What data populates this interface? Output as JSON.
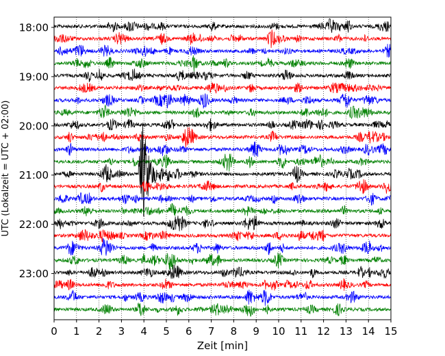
{
  "chart_data": {
    "type": "line",
    "subtype": "seismogram-dayplot",
    "xlabel": "Zeit  [min]",
    "ylabel": "UTC (Lokalzeit = UTC + 02:00)",
    "xlim": [
      0,
      15
    ],
    "x_ticks": [
      "0",
      "1",
      "2",
      "3",
      "4",
      "5",
      "6",
      "7",
      "8",
      "9",
      "10",
      "11",
      "12",
      "13",
      "14",
      "15"
    ],
    "y_ticks": [
      "18:00",
      "19:00",
      "20:00",
      "21:00",
      "22:00",
      "23:00"
    ],
    "trace_interval_minutes": 15,
    "trace_count": 24,
    "trace_colors": [
      "#000000",
      "#ff0000",
      "#0000ff",
      "#008000"
    ],
    "grid": "vertical-dotted",
    "events": [
      {
        "trace": 12,
        "minute": 3.95,
        "peak_amplitude": 4.6,
        "note": "large transient at approx. 21:00-21:15 UTC"
      }
    ]
  }
}
